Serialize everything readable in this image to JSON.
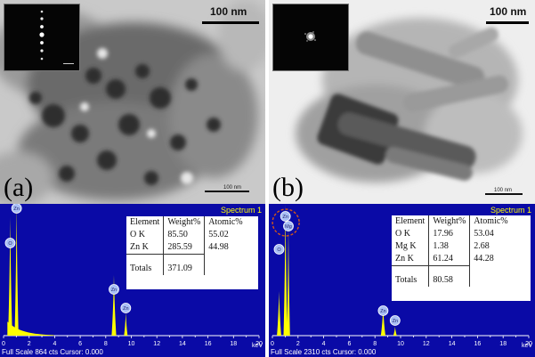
{
  "panels": [
    {
      "letter": "(a)",
      "scale_label": "100 nm",
      "small_scale_label": "100 nm",
      "spectrum_label": "Spectrum 1",
      "footer": "Full Scale 864 cts Cursor: 0.000",
      "unit": "keV",
      "x_ticks": [
        "0",
        "2",
        "4",
        "6",
        "8",
        "10",
        "12",
        "14",
        "16",
        "18",
        "20"
      ],
      "peak_labels": [
        "Zn",
        "O",
        "Zn",
        "Zn",
        "Zn"
      ],
      "table": {
        "headers": [
          "Element",
          "Weight%",
          "Atomic%"
        ],
        "rows": [
          [
            "O K",
            "85.50",
            "55.02"
          ],
          [
            "Zn K",
            "285.59",
            "44.98"
          ]
        ],
        "totals": [
          "Totals",
          "371.09"
        ]
      }
    },
    {
      "letter": "(b)",
      "scale_label": "100 nm",
      "small_scale_label": "100 nm",
      "spectrum_label": "Spectrum 1",
      "footer": "Full Scale 2310 cts Cursor: 0.000",
      "unit": "keV",
      "x_ticks": [
        "0",
        "2",
        "4",
        "6",
        "8",
        "10",
        "12",
        "14",
        "16",
        "18",
        "20"
      ],
      "peak_labels": [
        "Mg",
        "Zn",
        "O",
        "Zn",
        "Zn"
      ],
      "table": {
        "headers": [
          "Element",
          "Weight%",
          "Atomic%"
        ],
        "rows": [
          [
            "O K",
            "17.96",
            "53.04"
          ],
          [
            "Mg K",
            "1.38",
            "2.68"
          ],
          [
            "Zn K",
            "61.24",
            "44.28"
          ]
        ],
        "totals": [
          "Totals",
          "80.58"
        ]
      }
    }
  ],
  "colors": {
    "spectrum_bg": "#0a0aa6",
    "peak_fill": "#ffff00",
    "highlight_circle": "#d0561a"
  }
}
